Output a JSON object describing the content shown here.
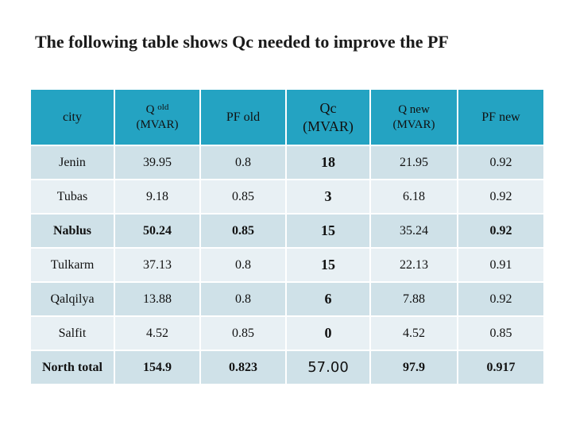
{
  "title": "The following table shows Qc needed to improve the PF",
  "headers": {
    "city": "city",
    "q_old_main": "Q",
    "q_old_sub": "old",
    "q_old_unit": "(MVAR)",
    "pf_old": "PF old",
    "qc_main": "Qc",
    "qc_unit": "(MVAR)",
    "q_new_main": "Q new",
    "q_new_unit": "(MVAR)",
    "pf_new": "PF new"
  },
  "rows": [
    {
      "city": "Jenin",
      "q_old": "39.95",
      "pf_old": "0.8",
      "qc": "18",
      "q_new": "21.95",
      "pf_new": "0.92"
    },
    {
      "city": "Tubas",
      "q_old": "9.18",
      "pf_old": "0.85",
      "qc": "3",
      "q_new": "6.18",
      "pf_new": "0.92"
    },
    {
      "city": "Nablus",
      "q_old": "50.24",
      "pf_old": "0.85",
      "qc": "15",
      "q_new": "35.24",
      "pf_new": "0.92"
    },
    {
      "city": "Tulkarm",
      "q_old": "37.13",
      "pf_old": "0.8",
      "qc": "15",
      "q_new": "22.13",
      "pf_new": "0.91"
    },
    {
      "city": "Qalqilya",
      "q_old": "13.88",
      "pf_old": "0.8",
      "qc": "6",
      "q_new": "7.88",
      "pf_new": "0.92"
    },
    {
      "city": "Salfit",
      "q_old": "4.52",
      "pf_old": "0.85",
      "qc": "0",
      "q_new": "4.52",
      "pf_new": "0.85"
    },
    {
      "city": "North total",
      "q_old": "154.9",
      "pf_old": "0.823",
      "qc": "57.00",
      "q_new": "97.9",
      "pf_new": "0.917"
    }
  ],
  "colors": {
    "header_bg": "#24a3c2",
    "row_odd": "#cfe1e8",
    "row_even": "#e8f0f4"
  }
}
